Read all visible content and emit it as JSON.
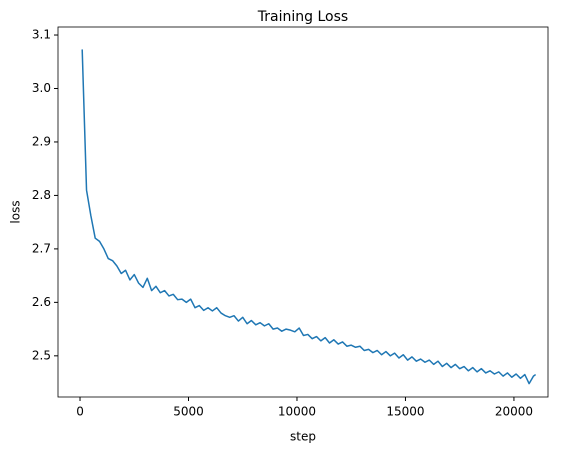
{
  "chart_data": {
    "type": "line",
    "title": "Training Loss",
    "x_label": "step",
    "y_label": "loss",
    "x": [
      100,
      300,
      500,
      700,
      900,
      1100,
      1300,
      1500,
      1700,
      1900,
      2100,
      2300,
      2500,
      2700,
      2900,
      3100,
      3300,
      3500,
      3700,
      3900,
      4100,
      4300,
      4500,
      4700,
      4900,
      5100,
      5300,
      5500,
      5700,
      5900,
      6100,
      6300,
      6500,
      6700,
      6900,
      7100,
      7300,
      7500,
      7700,
      7900,
      8100,
      8300,
      8500,
      8700,
      8900,
      9100,
      9300,
      9500,
      9700,
      9900,
      10100,
      10300,
      10500,
      10700,
      10900,
      11100,
      11300,
      11500,
      11700,
      11900,
      12100,
      12300,
      12500,
      12700,
      12900,
      13100,
      13300,
      13500,
      13700,
      13900,
      14100,
      14300,
      14500,
      14700,
      14900,
      15100,
      15300,
      15500,
      15700,
      15900,
      16100,
      16300,
      16500,
      16700,
      16900,
      17100,
      17300,
      17500,
      17700,
      17900,
      18100,
      18300,
      18500,
      18700,
      18900,
      19100,
      19300,
      19500,
      19700,
      19900,
      20100,
      20300,
      20500,
      20700,
      20900,
      21000
    ],
    "series": [
      {
        "name": "loss",
        "color": "#1f77b4",
        "values": [
          3.073,
          2.81,
          2.762,
          2.72,
          2.714,
          2.7,
          2.682,
          2.678,
          2.668,
          2.654,
          2.66,
          2.642,
          2.652,
          2.636,
          2.628,
          2.645,
          2.622,
          2.63,
          2.618,
          2.622,
          2.612,
          2.615,
          2.605,
          2.606,
          2.6,
          2.606,
          2.59,
          2.594,
          2.585,
          2.59,
          2.584,
          2.59,
          2.58,
          2.575,
          2.572,
          2.575,
          2.565,
          2.572,
          2.56,
          2.566,
          2.558,
          2.562,
          2.556,
          2.56,
          2.55,
          2.552,
          2.546,
          2.55,
          2.548,
          2.545,
          2.552,
          2.538,
          2.54,
          2.532,
          2.536,
          2.528,
          2.534,
          2.524,
          2.53,
          2.522,
          2.526,
          2.518,
          2.52,
          2.516,
          2.518,
          2.51,
          2.512,
          2.506,
          2.51,
          2.502,
          2.508,
          2.5,
          2.505,
          2.496,
          2.502,
          2.492,
          2.498,
          2.49,
          2.494,
          2.488,
          2.492,
          2.484,
          2.49,
          2.48,
          2.486,
          2.478,
          2.484,
          2.476,
          2.48,
          2.472,
          2.478,
          2.47,
          2.476,
          2.468,
          2.472,
          2.466,
          2.47,
          2.462,
          2.468,
          2.46,
          2.466,
          2.458,
          2.465,
          2.448,
          2.462,
          2.465
        ]
      }
    ],
    "xlim": [
      -1015,
      21570
    ],
    "ylim": [
      2.423,
      3.115
    ],
    "xticks": [
      0,
      5000,
      10000,
      15000,
      20000
    ],
    "yticks": [
      2.5,
      2.6,
      2.7,
      2.8,
      2.9,
      {
        "value": 3,
        "label": "3.0"
      },
      3.1
    ]
  }
}
